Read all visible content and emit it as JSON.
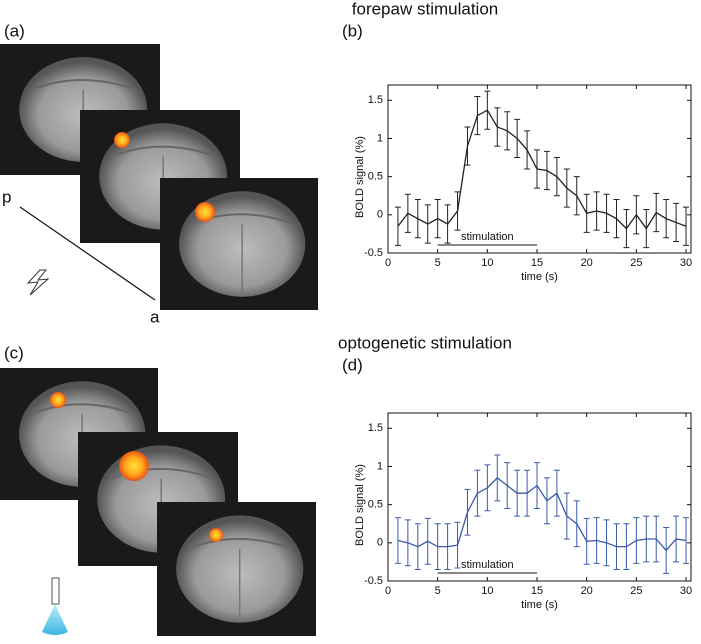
{
  "headings": [
    "forepaw stimulation",
    "optogenetic stimulation"
  ],
  "panel_labels": [
    "(a)",
    "(b)",
    "(c)",
    "(d)"
  ],
  "axis_markers": [
    "p",
    "a"
  ],
  "chart_data": [
    {
      "type": "line",
      "xlabel": "time (s)",
      "ylabel": "BOLD signal (%)",
      "annotation": "stimulation",
      "stimulation_span": [
        5,
        15
      ],
      "x": [
        1,
        2,
        3,
        4,
        5,
        6,
        7,
        8,
        9,
        10,
        11,
        12,
        13,
        14,
        15,
        16,
        17,
        18,
        19,
        20,
        21,
        22,
        23,
        24,
        25,
        26,
        27,
        28,
        29,
        30
      ],
      "series": [
        {
          "color": "#222222",
          "values": [
            -0.15,
            0.02,
            -0.05,
            -0.12,
            -0.05,
            -0.12,
            0.05,
            0.9,
            1.3,
            1.37,
            1.15,
            1.1,
            1.0,
            0.85,
            0.6,
            0.58,
            0.5,
            0.35,
            0.25,
            0.02,
            0.05,
            0.02,
            -0.05,
            -0.18,
            0.0,
            -0.18,
            0.03,
            -0.05,
            -0.1,
            -0.15
          ],
          "errors": [
            0.25,
            0.25,
            0.25,
            0.25,
            0.25,
            0.25,
            0.25,
            0.25,
            0.25,
            0.25,
            0.25,
            0.25,
            0.25,
            0.25,
            0.25,
            0.25,
            0.25,
            0.25,
            0.25,
            0.25,
            0.25,
            0.25,
            0.25,
            0.25,
            0.25,
            0.25,
            0.25,
            0.25,
            0.25,
            0.25
          ]
        }
      ],
      "xlim": [
        0,
        30.5
      ],
      "ylim": [
        -0.5,
        1.7
      ],
      "xticks": [
        0,
        5,
        10,
        15,
        20,
        25,
        30
      ],
      "yticks": [
        -0.5,
        0,
        0.5,
        1,
        1.5
      ]
    },
    {
      "type": "line",
      "xlabel": "time (s)",
      "ylabel": "BOLD signal (%)",
      "annotation": "stimulation",
      "stimulation_span": [
        5,
        15
      ],
      "x": [
        1,
        2,
        3,
        4,
        5,
        6,
        7,
        8,
        9,
        10,
        11,
        12,
        13,
        14,
        15,
        16,
        17,
        18,
        19,
        20,
        21,
        22,
        23,
        24,
        25,
        26,
        27,
        28,
        29,
        30
      ],
      "series": [
        {
          "color": "#3b5ba5",
          "values": [
            0.03,
            0.0,
            -0.05,
            0.02,
            -0.05,
            -0.05,
            -0.03,
            0.4,
            0.65,
            0.72,
            0.85,
            0.75,
            0.65,
            0.65,
            0.75,
            0.55,
            0.65,
            0.35,
            0.25,
            0.02,
            0.03,
            0.0,
            -0.05,
            -0.05,
            0.03,
            0.05,
            0.05,
            -0.1,
            0.05,
            0.03
          ],
          "errors": [
            0.3,
            0.3,
            0.3,
            0.3,
            0.3,
            0.3,
            0.3,
            0.3,
            0.3,
            0.3,
            0.3,
            0.3,
            0.3,
            0.3,
            0.3,
            0.3,
            0.3,
            0.3,
            0.3,
            0.3,
            0.3,
            0.3,
            0.3,
            0.3,
            0.3,
            0.3,
            0.3,
            0.3,
            0.3,
            0.3
          ]
        }
      ],
      "xlim": [
        0,
        30.5
      ],
      "ylim": [
        -0.5,
        1.7
      ],
      "xticks": [
        0,
        5,
        10,
        15,
        20,
        25,
        30
      ],
      "yticks": [
        -0.5,
        0,
        0.5,
        1,
        1.5
      ]
    }
  ]
}
